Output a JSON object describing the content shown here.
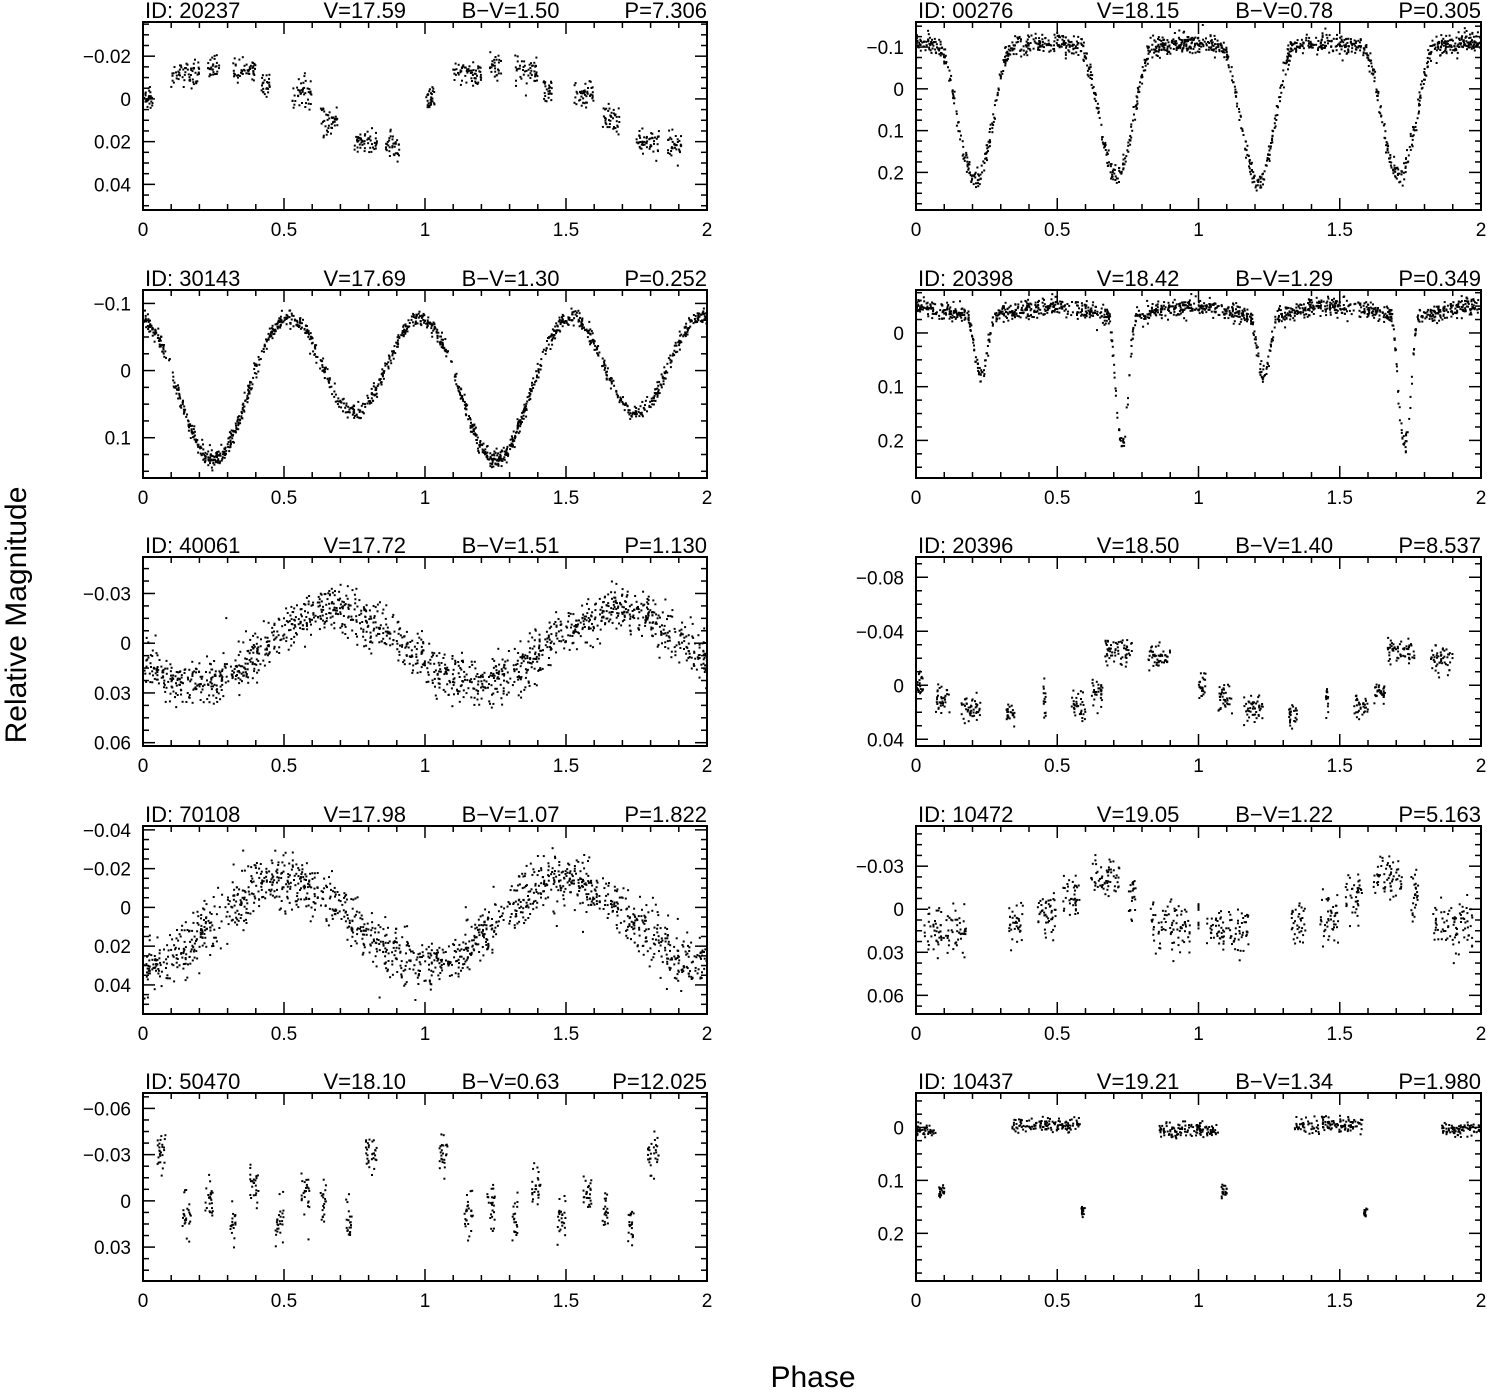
{
  "figure": {
    "xlabel": "Phase",
    "ylabel": "Relative Magnitude"
  },
  "chart_data": [
    {
      "type": "scatter",
      "id": "20237",
      "V": "17.59",
      "BV": "1.50",
      "P": "7.306",
      "labels": {
        "id": "ID: 20237",
        "v": "V=17.59",
        "bv": "B−V=1.50",
        "p": "P=7.306"
      },
      "xlim": [
        0,
        2
      ],
      "ylim": [
        0.052,
        -0.036
      ],
      "y_inverted": true,
      "xticks": [
        0,
        0.5,
        1,
        1.5,
        2
      ],
      "xtick_labels": [
        "0",
        "0.5",
        "1",
        "1.5",
        "2"
      ],
      "yticks": [
        -0.02,
        0,
        0.02,
        0.04
      ],
      "ytick_labels": [
        "−0.02",
        "0",
        "0.02",
        "0.04"
      ],
      "curve": {
        "kind": "segments",
        "phase_groups": [
          [
            0.0,
            0.04,
            0.0
          ],
          [
            0.1,
            0.2,
            -0.012
          ],
          [
            0.23,
            0.27,
            -0.015
          ],
          [
            0.32,
            0.4,
            -0.013
          ],
          [
            0.42,
            0.45,
            -0.005
          ],
          [
            0.53,
            0.6,
            -0.002
          ],
          [
            0.63,
            0.69,
            0.01
          ],
          [
            0.75,
            0.83,
            0.02
          ],
          [
            0.86,
            0.91,
            0.022
          ]
        ],
        "scatter": 0.003
      }
    },
    {
      "type": "scatter",
      "id": "00276",
      "V": "18.15",
      "BV": "0.78",
      "P": "0.305",
      "labels": {
        "id": "ID: 00276",
        "v": "V=18.15",
        "bv": "B−V=0.78",
        "p": "P=0.305"
      },
      "xlim": [
        0,
        2
      ],
      "ylim": [
        0.29,
        -0.16
      ],
      "y_inverted": true,
      "xticks": [
        0,
        0.5,
        1,
        1.5,
        2
      ],
      "xtick_labels": [
        "0",
        "0.5",
        "1",
        "1.5",
        "2"
      ],
      "yticks": [
        -0.1,
        0,
        0.1,
        0.2
      ],
      "ytick_labels": [
        "−0.1",
        "0",
        "0.1",
        "0.2"
      ],
      "curve": {
        "kind": "eclipsing",
        "max": -0.1,
        "min1": 0.21,
        "min2": 0.2,
        "phase_min1": 0.21,
        "width": 0.13,
        "scatter": 0.012
      }
    },
    {
      "type": "scatter",
      "id": "30143",
      "V": "17.69",
      "BV": "1.30",
      "P": "0.252",
      "labels": {
        "id": "ID: 30143",
        "v": "V=17.69",
        "bv": "B−V=1.30",
        "p": "P=0.252"
      },
      "xlim": [
        0,
        2
      ],
      "ylim": [
        0.16,
        -0.12
      ],
      "y_inverted": true,
      "xticks": [
        0,
        0.5,
        1,
        1.5,
        2
      ],
      "xtick_labels": [
        "0",
        "0.5",
        "1",
        "1.5",
        "2"
      ],
      "yticks": [
        -0.1,
        0,
        0.1
      ],
      "ytick_labels": [
        "−0.1",
        "0",
        "0.1"
      ],
      "curve": {
        "kind": "wuma",
        "max": -0.075,
        "min1": 0.115,
        "min2": 0.045,
        "phase_min1": 0.25,
        "scatter": 0.006
      }
    },
    {
      "type": "scatter",
      "id": "20398",
      "V": "18.42",
      "BV": "1.29",
      "P": "0.349",
      "labels": {
        "id": "ID: 20398",
        "v": "V=18.42",
        "bv": "B−V=1.29",
        "p": "P=0.349"
      },
      "xlim": [
        0,
        2
      ],
      "ylim": [
        0.27,
        -0.08
      ],
      "y_inverted": true,
      "xticks": [
        0,
        0.5,
        1,
        1.5,
        2
      ],
      "xtick_labels": [
        "0",
        "0.5",
        "1",
        "1.5",
        "2"
      ],
      "yticks": [
        0,
        0.1,
        0.2
      ],
      "ytick_labels": [
        "0",
        "0.1",
        "0.2"
      ],
      "curve": {
        "kind": "eclipsing",
        "max": -0.04,
        "min1": 0.2,
        "min2": 0.07,
        "phase_min1": 0.73,
        "width": 0.05,
        "scatter": 0.008
      }
    },
    {
      "type": "scatter",
      "id": "40061",
      "V": "17.72",
      "BV": "1.51",
      "P": "1.130",
      "labels": {
        "id": "ID: 40061",
        "v": "V=17.72",
        "bv": "B−V=1.51",
        "p": "P=1.130"
      },
      "xlim": [
        0,
        2
      ],
      "ylim": [
        0.062,
        -0.052
      ],
      "y_inverted": true,
      "xticks": [
        0,
        0.5,
        1,
        1.5,
        2
      ],
      "xtick_labels": [
        "0",
        "0.5",
        "1",
        "1.5",
        "2"
      ],
      "yticks": [
        -0.03,
        0,
        0.03,
        0.06
      ],
      "ytick_labels": [
        "−0.03",
        "0",
        "0.03",
        "0.06"
      ],
      "curve": {
        "kind": "sinus",
        "mean": 0.002,
        "amp": 0.022,
        "phase_max": 0.68,
        "scatter": 0.007
      }
    },
    {
      "type": "scatter",
      "id": "20396",
      "V": "18.50",
      "BV": "1.40",
      "P": "8.537",
      "labels": {
        "id": "ID: 20396",
        "v": "V=18.50",
        "bv": "B−V=1.40",
        "p": "P=8.537"
      },
      "xlim": [
        0,
        2
      ],
      "ylim": [
        0.045,
        -0.095
      ],
      "y_inverted": true,
      "xticks": [
        0,
        0.5,
        1,
        1.5,
        2
      ],
      "xtick_labels": [
        "0",
        "0.5",
        "1",
        "1.5",
        "2"
      ],
      "yticks": [
        -0.08,
        -0.04,
        0,
        0.04
      ],
      "ytick_labels": [
        "−0.08",
        "−0.04",
        "0",
        "0.04"
      ],
      "curve": {
        "kind": "segments",
        "phase_groups": [
          [
            0.0,
            0.03,
            0.0
          ],
          [
            0.07,
            0.12,
            0.01
          ],
          [
            0.16,
            0.23,
            0.018
          ],
          [
            0.32,
            0.35,
            0.02
          ],
          [
            0.45,
            0.46,
            0.01
          ],
          [
            0.55,
            0.6,
            0.015
          ],
          [
            0.62,
            0.66,
            0.005
          ],
          [
            0.67,
            0.77,
            -0.025
          ],
          [
            0.82,
            0.9,
            -0.02
          ]
        ],
        "scatter": 0.005
      }
    },
    {
      "type": "scatter",
      "id": "70108",
      "V": "17.98",
      "BV": "1.07",
      "P": "1.822",
      "labels": {
        "id": "ID: 70108",
        "v": "V=17.98",
        "bv": "B−V=1.07",
        "p": "P=1.822"
      },
      "xlim": [
        0,
        2
      ],
      "ylim": [
        0.055,
        -0.042
      ],
      "y_inverted": true,
      "xticks": [
        0,
        0.5,
        1,
        1.5,
        2
      ],
      "xtick_labels": [
        "0",
        "0.5",
        "1",
        "1.5",
        "2"
      ],
      "yticks": [
        -0.04,
        -0.02,
        0,
        0.02,
        0.04
      ],
      "ytick_labels": [
        "−0.04",
        "−0.02",
        "0",
        "0.02",
        "0.04"
      ],
      "curve": {
        "kind": "sinus",
        "mean": 0.008,
        "amp": 0.022,
        "phase_max": 0.5,
        "scatter": 0.007
      }
    },
    {
      "type": "scatter",
      "id": "10472",
      "V": "19.05",
      "BV": "1.22",
      "P": "5.163",
      "labels": {
        "id": "ID: 10472",
        "v": "V=19.05",
        "bv": "B−V=1.22",
        "p": "P=5.163"
      },
      "xlim": [
        0,
        2
      ],
      "ylim": [
        0.073,
        -0.058
      ],
      "y_inverted": true,
      "xticks": [
        0,
        0.5,
        1,
        1.5,
        2
      ],
      "xtick_labels": [
        "0",
        "0.5",
        "1",
        "1.5",
        "2"
      ],
      "yticks": [
        -0.03,
        0,
        0.03,
        0.06
      ],
      "ytick_labels": [
        "−0.03",
        "0",
        "0.03",
        "0.06"
      ],
      "curve": {
        "kind": "segments",
        "phase_groups": [
          [
            0.03,
            0.18,
            0.015
          ],
          [
            0.33,
            0.38,
            0.01
          ],
          [
            0.43,
            0.5,
            0.005
          ],
          [
            0.52,
            0.58,
            -0.01
          ],
          [
            0.62,
            0.72,
            -0.022
          ],
          [
            0.75,
            0.78,
            -0.01
          ],
          [
            0.83,
            0.97,
            0.012
          ],
          [
            1.0,
            1.0,
            0.0
          ]
        ],
        "scatter": 0.008
      }
    },
    {
      "type": "scatter",
      "id": "50470",
      "V": "18.10",
      "BV": "0.63",
      "P": "12.025",
      "labels": {
        "id": "ID: 50470",
        "v": "V=18.10",
        "bv": "B−V=0.63",
        "p": "P=12.025"
      },
      "xlim": [
        0,
        2
      ],
      "ylim": [
        0.052,
        -0.07
      ],
      "y_inverted": true,
      "xticks": [
        0,
        0.5,
        1,
        1.5,
        2
      ],
      "xtick_labels": [
        "0",
        "0.5",
        "1",
        "1.5",
        "2"
      ],
      "yticks": [
        -0.06,
        -0.03,
        0,
        0.03
      ],
      "ytick_labels": [
        "−0.06",
        "−0.03",
        "0",
        "0.03"
      ],
      "curve": {
        "kind": "segments",
        "phase_groups": [
          [
            0.05,
            0.08,
            -0.03
          ],
          [
            0.14,
            0.17,
            0.01
          ],
          [
            0.22,
            0.25,
            0.0
          ],
          [
            0.31,
            0.33,
            0.015
          ],
          [
            0.38,
            0.41,
            -0.01
          ],
          [
            0.47,
            0.5,
            0.012
          ],
          [
            0.56,
            0.59,
            -0.005
          ],
          [
            0.63,
            0.65,
            0.005
          ],
          [
            0.72,
            0.74,
            0.015
          ],
          [
            0.79,
            0.83,
            -0.03
          ]
        ],
        "scatter": 0.007
      }
    },
    {
      "type": "scatter",
      "id": "10437",
      "V": "19.21",
      "BV": "1.34",
      "P": "1.980",
      "labels": {
        "id": "ID: 10437",
        "v": "V=19.21",
        "bv": "B−V=1.34",
        "p": "P=1.980"
      },
      "xlim": [
        0,
        2
      ],
      "ylim": [
        0.29,
        -0.065
      ],
      "y_inverted": true,
      "xticks": [
        0,
        0.5,
        1,
        1.5,
        2
      ],
      "xtick_labels": [
        "0",
        "0.5",
        "1",
        "1.5",
        "2"
      ],
      "yticks": [
        0,
        0.1,
        0.2
      ],
      "ytick_labels": [
        "0",
        "0.1",
        "0.2"
      ],
      "curve": {
        "kind": "segments",
        "phase_groups": [
          [
            0.0,
            0.07,
            0.005
          ],
          [
            0.08,
            0.1,
            0.12
          ],
          [
            0.34,
            0.58,
            -0.005
          ],
          [
            0.585,
            0.6,
            0.16
          ],
          [
            0.86,
            1.0,
            0.005
          ]
        ],
        "scatter": 0.007
      }
    }
  ]
}
